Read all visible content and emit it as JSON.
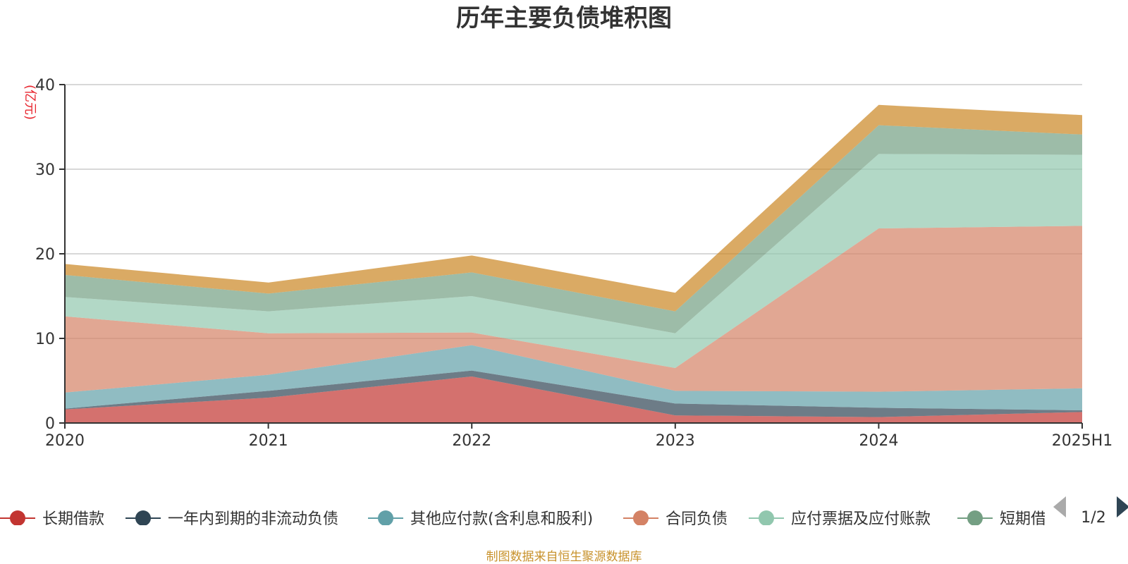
{
  "chart_data": {
    "type": "area",
    "stacked": true,
    "title": "历年主要负债堆积图",
    "unit": "(亿元)",
    "categories": [
      "2020",
      "2021",
      "2022",
      "2023",
      "2024",
      "2025H1"
    ],
    "ylim": [
      0,
      40
    ],
    "y_ticks": [
      0,
      10,
      20,
      30,
      40
    ],
    "grid": true,
    "legend_position": "bottom",
    "series": [
      {
        "name": "长期借款",
        "color": "#c23531",
        "values": [
          1.6,
          3.0,
          5.5,
          0.9,
          0.7,
          1.3
        ]
      },
      {
        "name": "一年内到期的非流动负债",
        "color": "#2f4554",
        "values": [
          0.1,
          0.8,
          0.7,
          1.4,
          1.1,
          0.2
        ]
      },
      {
        "name": "其他应付款(含利息和股利)",
        "color": "#61a0a8",
        "values": [
          1.9,
          1.9,
          3.0,
          1.5,
          1.9,
          2.6
        ]
      },
      {
        "name": "合同负债",
        "color": "#d48265",
        "values": [
          9.0,
          4.9,
          1.5,
          2.7,
          19.3,
          19.2
        ]
      },
      {
        "name": "应付票据及应付账款",
        "color": "#91c7ae",
        "values": [
          2.3,
          2.6,
          4.3,
          4.1,
          8.8,
          8.4
        ]
      },
      {
        "name": "短期借款",
        "color": "#749f83",
        "values": [
          2.6,
          2.1,
          2.8,
          2.6,
          3.4,
          2.4
        ]
      },
      {
        "name": "",
        "color": "#ca8622",
        "values": [
          1.3,
          1.3,
          2.0,
          2.2,
          2.4,
          2.3
        ]
      }
    ]
  },
  "legend": {
    "items": [
      {
        "label": "长期借款",
        "color": "#c23531"
      },
      {
        "label": "一年内到期的非流动负债",
        "color": "#2f4554"
      },
      {
        "label": "其他应付款(含利息和股利)",
        "color": "#61a0a8"
      },
      {
        "label": "合同负债",
        "color": "#d48265"
      },
      {
        "label": "应付票据及应付账款",
        "color": "#91c7ae"
      },
      {
        "label": "短期借",
        "color": "#749f83"
      }
    ],
    "page_indicator": "1/2",
    "prev_icon": "triangle-left-icon",
    "next_icon": "triangle-right-icon"
  },
  "footer": {
    "source": "制图数据来自恒生聚源数据库"
  }
}
